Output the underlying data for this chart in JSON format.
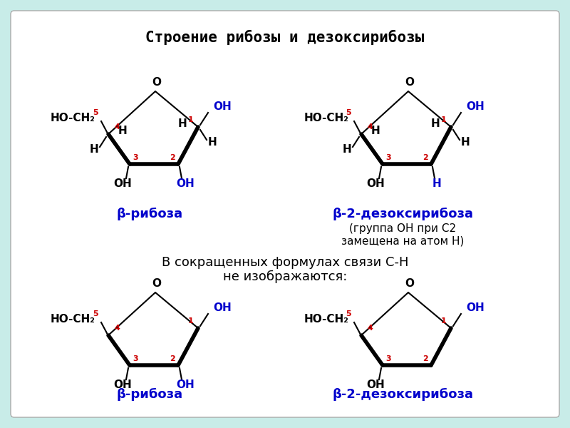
{
  "title": "Строение рибозы и дезоксирибозы",
  "bg_color": "#c8ece8",
  "box_color": "#ffffff",
  "text_color": "#000000",
  "blue_color": "#0000cc",
  "red_color": "#cc0000",
  "mid_text1": "В сокращенных формулах связи С-Н",
  "mid_text2": "не изображаются:",
  "label1": "β-рибоза",
  "label2": "β-2-дезоксирибоза",
  "label3": "β-рибоза",
  "label4": "β-2-дезоксирибоза",
  "note2": "(группа ОН при С2",
  "note3": "замещена на атом Н)"
}
